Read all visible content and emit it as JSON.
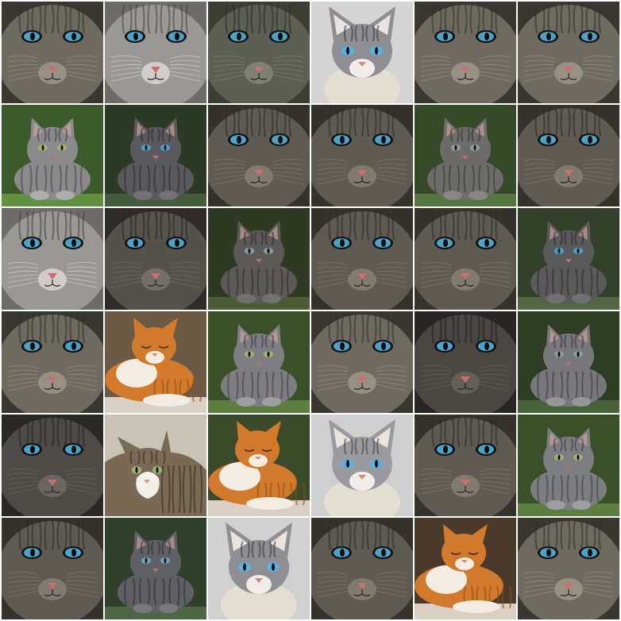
{
  "grid": {
    "rows": 6,
    "cols": 6,
    "cells": [
      {
        "subject": "tabby-closeup",
        "fur": "#6f6a60",
        "eyes": "#4aa3c9",
        "bg": "#3a3630"
      },
      {
        "subject": "tabby-closeup",
        "fur": "#9a9894",
        "eyes": "#4aa3c9",
        "bg": "#6e6c68"
      },
      {
        "subject": "tabby-closeup",
        "fur": "#5d5f55",
        "eyes": "#4aa3c9",
        "bg": "#3c4034"
      },
      {
        "subject": "siamese-tabby",
        "fur": "#8e8f92",
        "eyes": "#5ab3e0",
        "bg": "#d4d4d4"
      },
      {
        "subject": "tabby-closeup",
        "fur": "#6f6a60",
        "eyes": "#4aa3c9",
        "bg": "#3a3630"
      },
      {
        "subject": "tabby-closeup",
        "fur": "#6f6a60",
        "eyes": "#4aa3c9",
        "bg": "#3a3630"
      },
      {
        "subject": "gray-tabby-sitting",
        "fur": "#8a8a8c",
        "eyes": "#a7b36a",
        "bg": "#3d5a2a"
      },
      {
        "subject": "gray-tabby-sitting",
        "fur": "#5a5a5e",
        "eyes": "#4aa3c9",
        "bg": "#2c3a26"
      },
      {
        "subject": "tabby-closeup",
        "fur": "#5f5a52",
        "eyes": "#4aa3c9",
        "bg": "#35322c"
      },
      {
        "subject": "tabby-closeup",
        "fur": "#5f5a52",
        "eyes": "#4aa3c9",
        "bg": "#35322c"
      },
      {
        "subject": "gray-tabby-sitting",
        "fur": "#6d6c6a",
        "eyes": "#8aa0a0",
        "bg": "#354a28"
      },
      {
        "subject": "tabby-closeup",
        "fur": "#5f5a52",
        "eyes": "#4aa3c9",
        "bg": "#35322c"
      },
      {
        "subject": "tabby-closeup",
        "fur": "#9a9894",
        "eyes": "#4aa3c9",
        "bg": "#6e6c68"
      },
      {
        "subject": "tabby-closeup",
        "fur": "#55524c",
        "eyes": "#4aa3c9",
        "bg": "#2e2c28"
      },
      {
        "subject": "gray-tabby-sitting",
        "fur": "#5c5a58",
        "eyes": "#8aa0a0",
        "bg": "#2e3a22"
      },
      {
        "subject": "tabby-closeup",
        "fur": "#5f5a52",
        "eyes": "#4aa3c9",
        "bg": "#35322c"
      },
      {
        "subject": "tabby-closeup",
        "fur": "#5f5a52",
        "eyes": "#4aa3c9",
        "bg": "#35322c"
      },
      {
        "subject": "gray-tabby-sitting",
        "fur": "#5a5a5a",
        "eyes": "#4aa3c9",
        "bg": "#33402a"
      },
      {
        "subject": "tabby-closeup",
        "fur": "#6f6a60",
        "eyes": "#4aa3c9",
        "bg": "#3a3630"
      },
      {
        "subject": "orange-cat-lying",
        "fur": "#d27a2c",
        "eyes": "#000000",
        "bg": "#6b5a45"
      },
      {
        "subject": "gray-tabby-sitting",
        "fur": "#7d7e82",
        "eyes": "#a7b36a",
        "bg": "#3a5028"
      },
      {
        "subject": "tabby-closeup",
        "fur": "#6f6a60",
        "eyes": "#4aa3c9",
        "bg": "#3a3630"
      },
      {
        "subject": "tabby-closeup",
        "fur": "#4a4742",
        "eyes": "#4aa3c9",
        "bg": "#282622"
      },
      {
        "subject": "gray-tabby-sitting",
        "fur": "#77777c",
        "eyes": "#8aa0a0",
        "bg": "#2e3e24"
      },
      {
        "subject": "tabby-closeup",
        "fur": "#4e4b46",
        "eyes": "#4aa3c9",
        "bg": "#2a2824"
      },
      {
        "subject": "calico-tabby",
        "fur": "#7a6a55",
        "eyes": "#9bb36a",
        "bg": "#c9c3b6"
      },
      {
        "subject": "orange-cat-lying",
        "fur": "#d27a2c",
        "eyes": "#000000",
        "bg": "#3c4a2c"
      },
      {
        "subject": "siamese-tabby",
        "fur": "#9a9ba0",
        "eyes": "#5ab3e0",
        "bg": "#cfcfcf"
      },
      {
        "subject": "tabby-closeup",
        "fur": "#5f5a52",
        "eyes": "#4aa3c9",
        "bg": "#35322c"
      },
      {
        "subject": "gray-tabby-sitting",
        "fur": "#7d7e82",
        "eyes": "#a7b36a",
        "bg": "#3a5028"
      },
      {
        "subject": "tabby-closeup",
        "fur": "#5f5a52",
        "eyes": "#4aa3c9",
        "bg": "#35322c"
      },
      {
        "subject": "gray-tabby-sitting",
        "fur": "#5f6066",
        "eyes": "#6aa3b9",
        "bg": "#30402a"
      },
      {
        "subject": "siamese-tabby",
        "fur": "#8e8f92",
        "eyes": "#5ab3e0",
        "bg": "#d0d0d0"
      },
      {
        "subject": "tabby-closeup",
        "fur": "#5f5a52",
        "eyes": "#4aa3c9",
        "bg": "#35322c"
      },
      {
        "subject": "orange-cat-lying",
        "fur": "#d27a2c",
        "eyes": "#000000",
        "bg": "#4a3a2c"
      },
      {
        "subject": "tabby-closeup",
        "fur": "#6f6a60",
        "eyes": "#4aa3c9",
        "bg": "#3a3630"
      }
    ]
  }
}
